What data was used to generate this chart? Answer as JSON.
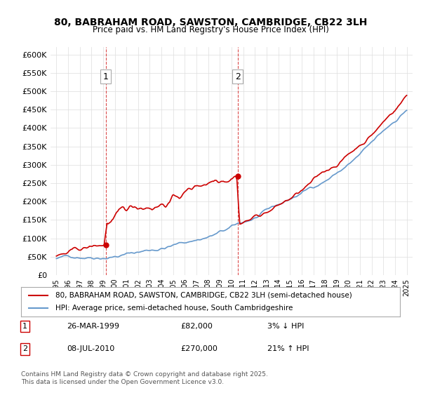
{
  "title": "80, BABRAHAM ROAD, SAWSTON, CAMBRIDGE, CB22 3LH",
  "subtitle": "Price paid vs. HM Land Registry's House Price Index (HPI)",
  "legend_line1": "80, BABRAHAM ROAD, SAWSTON, CAMBRIDGE, CB22 3LH (semi-detached house)",
  "legend_line2": "HPI: Average price, semi-detached house, South Cambridgeshire",
  "footer": "Contains HM Land Registry data © Crown copyright and database right 2025.\nThis data is licensed under the Open Government Licence v3.0.",
  "annotation1_label": "1",
  "annotation1_date": "26-MAR-1999",
  "annotation1_price": "£82,000",
  "annotation1_hpi": "3% ↓ HPI",
  "annotation2_label": "2",
  "annotation2_date": "08-JUL-2010",
  "annotation2_price": "£270,000",
  "annotation2_hpi": "21% ↑ HPI",
  "price_color": "#cc0000",
  "hpi_color": "#6699cc",
  "background_color": "#ffffff",
  "grid_color": "#dddddd",
  "ylim_min": 0,
  "ylim_max": 620000,
  "xstart_year": 1995,
  "xend_year": 2025,
  "purchase1_year": 1999.23,
  "purchase1_price": 82000,
  "purchase2_year": 2010.52,
  "purchase2_price": 270000
}
